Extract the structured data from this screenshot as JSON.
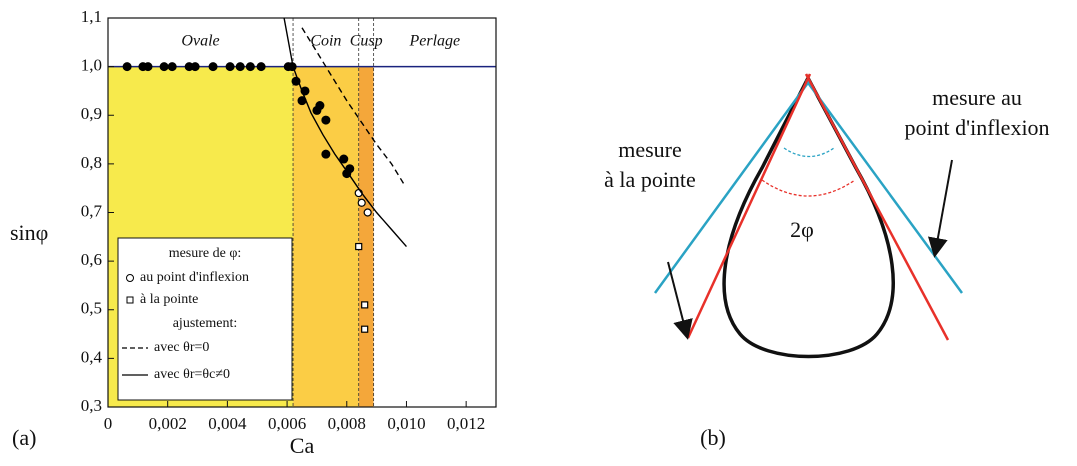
{
  "chart_data": {
    "type": "scatter",
    "panel_label": "(a)",
    "x_label": "Ca",
    "y_label": "sinφ",
    "xlim": [
      0,
      0.013
    ],
    "ylim": [
      0.3,
      1.1
    ],
    "xticks": [
      0,
      {
        "value": 0.002,
        "label": "0,002"
      },
      {
        "value": 0.004,
        "label": "0,004"
      },
      {
        "value": 0.006,
        "label": "0,006"
      },
      {
        "value": 0.008,
        "label": "0,008"
      },
      {
        "value": 0.01,
        "label": "0,010"
      },
      {
        "value": 0.012,
        "label": "0,012"
      }
    ],
    "yticks": [
      {
        "value": 0.3,
        "label": "0,3"
      },
      {
        "value": 0.4,
        "label": "0,4"
      },
      {
        "value": 0.5,
        "label": "0,5"
      },
      {
        "value": 0.6,
        "label": "0,6"
      },
      {
        "value": 0.7,
        "label": "0,7"
      },
      {
        "value": 0.8,
        "label": "0,8"
      },
      {
        "value": 0.9,
        "label": "0,9"
      },
      {
        "value": 1.0,
        "label": "1,0"
      },
      {
        "value": 1.1,
        "label": "1,1"
      }
    ],
    "hline": 1.0,
    "hline_color": "#1a237e",
    "regions": [
      {
        "name": "Ovale",
        "xlim": [
          0,
          0.0062
        ],
        "color": "#f7ea4c"
      },
      {
        "name": "Coin",
        "xlim": [
          0.0062,
          0.0084
        ],
        "color": "#fbcd45"
      },
      {
        "name": "Cusp",
        "xlim": [
          0.0084,
          0.0089
        ],
        "color": "#f4a73a"
      },
      {
        "name": "Perlage",
        "xlim": [
          0.0089,
          0.013
        ],
        "color": "#ffffff"
      }
    ],
    "legend": {
      "title": "mesure de φ:",
      "subtitle": "ajustement:",
      "position": "lower left"
    },
    "series": [
      {
        "marker": "filled-circle",
        "color": "#000000",
        "x": [
          0.00064,
          0.00117,
          0.00134,
          0.00188,
          0.00215,
          0.00272,
          0.00292,
          0.00352,
          0.00409,
          0.00443,
          0.00477,
          0.00513,
          0.00604,
          0.00617,
          0.0063,
          0.0066,
          0.0065,
          0.0071,
          0.0073,
          0.007,
          0.0073,
          0.0079,
          0.008,
          0.0081
        ],
        "values": [
          1.0,
          1.0,
          1.0,
          1.0,
          1.0,
          1.0,
          1.0,
          1.0,
          1.0,
          1.0,
          1.0,
          1.0,
          1.0,
          1.0,
          0.97,
          0.95,
          0.93,
          0.92,
          0.89,
          0.91,
          0.82,
          0.81,
          0.78,
          0.79
        ]
      },
      {
        "name": "au point d'inflexion",
        "marker": "open-circle",
        "color": "#000000",
        "x": [
          0.0084,
          0.0085,
          0.0087
        ],
        "values": [
          0.74,
          0.72,
          0.7
        ]
      },
      {
        "name": "à la pointe",
        "marker": "open-square",
        "color": "#000000",
        "x": [
          0.0084,
          0.0086,
          0.0086
        ],
        "values": [
          0.63,
          0.51,
          0.46
        ]
      },
      {
        "name": "avec θr=0",
        "marker": "dashed-line",
        "color": "#000000",
        "x": [
          0.0065,
          0.007,
          0.0075,
          0.008,
          0.0085,
          0.009,
          0.0095,
          0.0099
        ],
        "values": [
          1.08,
          1.03,
          0.98,
          0.93,
          0.885,
          0.84,
          0.8,
          0.76
        ]
      },
      {
        "name": "avec θr=θc≠0",
        "marker": "solid-line",
        "color": "#000000",
        "x": [
          0.0059,
          0.0062,
          0.0065,
          0.0068,
          0.0072,
          0.0076,
          0.008,
          0.0085,
          0.009,
          0.0095,
          0.01
        ],
        "values": [
          1.1,
          1.0,
          0.95,
          0.905,
          0.86,
          0.82,
          0.785,
          0.74,
          0.7,
          0.665,
          0.63
        ]
      }
    ]
  },
  "panel_b": {
    "panel_label": "(b)",
    "label_inflexion": [
      "mesure au",
      "point d'inflexion"
    ],
    "label_pointe": [
      "mesure",
      "à la pointe"
    ],
    "angle_label": "2φ"
  }
}
